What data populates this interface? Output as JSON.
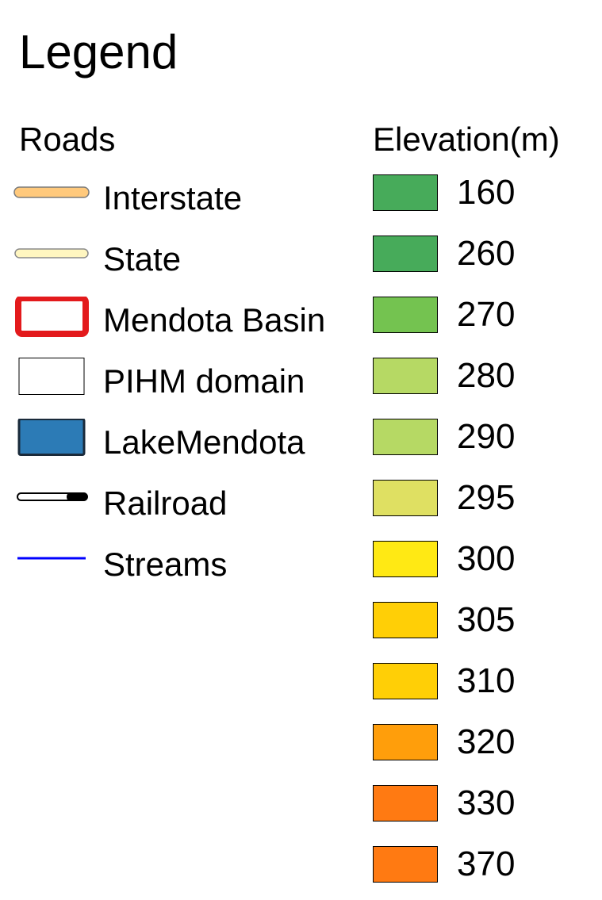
{
  "legend": {
    "title": "Legend",
    "roads": {
      "heading": "Roads",
      "items": [
        {
          "label": "Interstate",
          "symbol": "interstate-line-icon",
          "color": "#ffc97c"
        },
        {
          "label": "State",
          "symbol": "state-line-icon",
          "color": "#fff6c0"
        },
        {
          "label": "Mendota Basin",
          "symbol": "basin-outline-icon",
          "color": "#e31a1c"
        },
        {
          "label": "PIHM domain",
          "symbol": "domain-outline-icon",
          "color": "#000000"
        },
        {
          "label": "LakeMendota",
          "symbol": "lake-fill-icon",
          "color": "#2c7bb6"
        },
        {
          "label": "Railroad",
          "symbol": "railroad-line-icon",
          "color": "#000000"
        },
        {
          "label": "Streams",
          "symbol": "stream-line-icon",
          "color": "#0000ff"
        }
      ]
    },
    "elevation": {
      "heading": "Elevation(m)",
      "items": [
        {
          "label": "160",
          "color": "#47ab5a"
        },
        {
          "label": "260",
          "color": "#47ab5a"
        },
        {
          "label": "270",
          "color": "#74c350"
        },
        {
          "label": "280",
          "color": "#b6d964"
        },
        {
          "label": "290",
          "color": "#b6d964"
        },
        {
          "label": "295",
          "color": "#dfe062"
        },
        {
          "label": "300",
          "color": "#ffe914"
        },
        {
          "label": "305",
          "color": "#ffcf06"
        },
        {
          "label": "310",
          "color": "#ffcf06"
        },
        {
          "label": "320",
          "color": "#ff9e0b"
        },
        {
          "label": "330",
          "color": "#ff7a12"
        },
        {
          "label": "370",
          "color": "#ff7a12"
        }
      ]
    }
  }
}
